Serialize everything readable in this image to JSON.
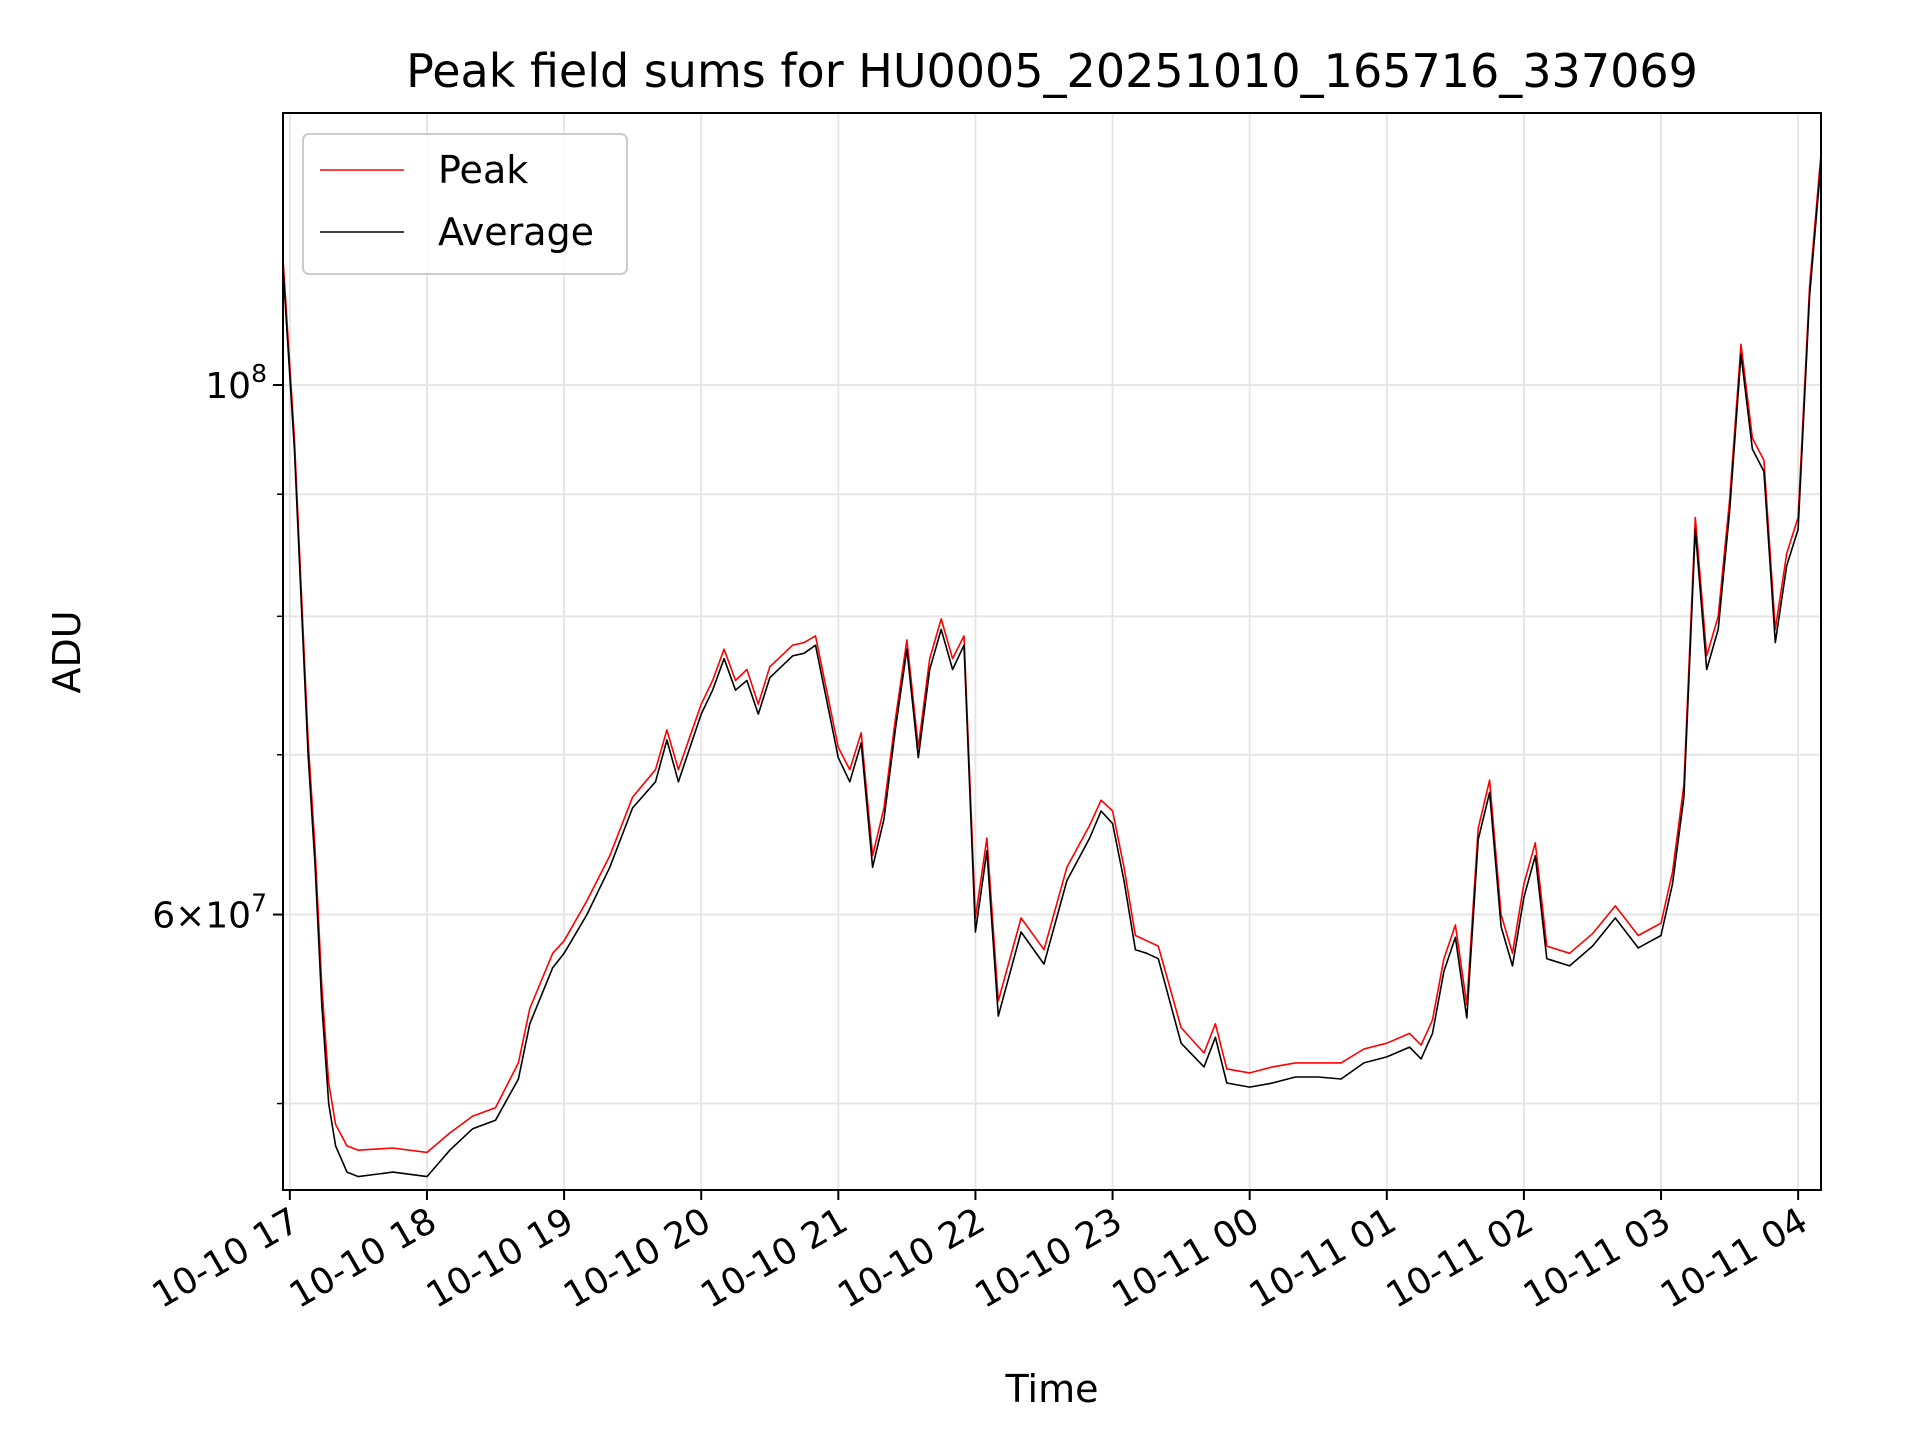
{
  "chart_data": {
    "type": "line",
    "title": "Peak field sums for HU0005_20251010_165716_337069",
    "xlabel": "Time",
    "ylabel": "ADU",
    "yscale": "log",
    "grid": true,
    "legend_position": "top-left",
    "xlim": [
      "2025-10-10 16:57",
      "2025-10-11 04:10"
    ],
    "ylim": [
      46000000,
      130000000
    ],
    "x_ticks": [
      {
        "t": "2025-10-10 17:00",
        "label": "10-10 17"
      },
      {
        "t": "2025-10-10 18:00",
        "label": "10-10 18"
      },
      {
        "t": "2025-10-10 19:00",
        "label": "10-10 19"
      },
      {
        "t": "2025-10-10 20:00",
        "label": "10-10 20"
      },
      {
        "t": "2025-10-10 21:00",
        "label": "10-10 21"
      },
      {
        "t": "2025-10-10 22:00",
        "label": "10-10 22"
      },
      {
        "t": "2025-10-10 23:00",
        "label": "10-10 23"
      },
      {
        "t": "2025-10-11 00:00",
        "label": "10-11 00"
      },
      {
        "t": "2025-10-11 01:00",
        "label": "10-11 01"
      },
      {
        "t": "2025-10-11 02:00",
        "label": "10-11 02"
      },
      {
        "t": "2025-10-11 03:00",
        "label": "10-11 03"
      },
      {
        "t": "2025-10-11 04:00",
        "label": "10-11 04"
      }
    ],
    "y_major_ticks": [
      {
        "value": 60000000,
        "base": "6×10",
        "exp": "7"
      },
      {
        "value": 100000000,
        "base": "10",
        "exp": "8"
      }
    ],
    "y_minor_ticks": [
      50000000,
      70000000,
      80000000,
      90000000
    ],
    "colors": {
      "peak": "#ff0000",
      "average": "#000000"
    },
    "series": [
      {
        "name": "Peak",
        "color": "#ff0000",
        "x": [
          "2025-10-10 16:57",
          "2025-10-10 17:02",
          "2025-10-10 17:05",
          "2025-10-10 17:08",
          "2025-10-10 17:11",
          "2025-10-10 17:14",
          "2025-10-10 17:17",
          "2025-10-10 17:20",
          "2025-10-10 17:25",
          "2025-10-10 17:30",
          "2025-10-10 17:45",
          "2025-10-10 18:00",
          "2025-10-10 18:10",
          "2025-10-10 18:20",
          "2025-10-10 18:30",
          "2025-10-10 18:40",
          "2025-10-10 18:45",
          "2025-10-10 18:55",
          "2025-10-10 19:00",
          "2025-10-10 19:10",
          "2025-10-10 19:20",
          "2025-10-10 19:30",
          "2025-10-10 19:40",
          "2025-10-10 19:45",
          "2025-10-10 19:50",
          "2025-10-10 20:00",
          "2025-10-10 20:05",
          "2025-10-10 20:10",
          "2025-10-10 20:15",
          "2025-10-10 20:20",
          "2025-10-10 20:25",
          "2025-10-10 20:30",
          "2025-10-10 20:40",
          "2025-10-10 20:45",
          "2025-10-10 20:50",
          "2025-10-10 21:00",
          "2025-10-10 21:05",
          "2025-10-10 21:10",
          "2025-10-10 21:15",
          "2025-10-10 21:20",
          "2025-10-10 21:25",
          "2025-10-10 21:30",
          "2025-10-10 21:35",
          "2025-10-10 21:40",
          "2025-10-10 21:45",
          "2025-10-10 21:50",
          "2025-10-10 21:55",
          "2025-10-10 22:00",
          "2025-10-10 22:05",
          "2025-10-10 22:10",
          "2025-10-10 22:20",
          "2025-10-10 22:30",
          "2025-10-10 22:40",
          "2025-10-10 22:50",
          "2025-10-10 22:55",
          "2025-10-10 23:00",
          "2025-10-10 23:05",
          "2025-10-10 23:10",
          "2025-10-10 23:15",
          "2025-10-10 23:20",
          "2025-10-10 23:30",
          "2025-10-10 23:40",
          "2025-10-10 23:45",
          "2025-10-10 23:50",
          "2025-10-11 00:00",
          "2025-10-11 00:10",
          "2025-10-11 00:20",
          "2025-10-11 00:30",
          "2025-10-11 00:40",
          "2025-10-11 00:50",
          "2025-10-11 01:00",
          "2025-10-11 01:10",
          "2025-10-11 01:15",
          "2025-10-11 01:20",
          "2025-10-11 01:25",
          "2025-10-11 01:30",
          "2025-10-11 01:35",
          "2025-10-11 01:40",
          "2025-10-11 01:45",
          "2025-10-11 01:50",
          "2025-10-11 01:55",
          "2025-10-11 02:00",
          "2025-10-11 02:05",
          "2025-10-11 02:10",
          "2025-10-11 02:20",
          "2025-10-11 02:30",
          "2025-10-11 02:40",
          "2025-10-11 02:50",
          "2025-10-11 03:00",
          "2025-10-11 03:05",
          "2025-10-11 03:10",
          "2025-10-11 03:15",
          "2025-10-11 03:20",
          "2025-10-11 03:25",
          "2025-10-11 03:30",
          "2025-10-11 03:35",
          "2025-10-11 03:40",
          "2025-10-11 03:45",
          "2025-10-11 03:50",
          "2025-10-11 03:55",
          "2025-10-11 04:00",
          "2025-10-11 04:05",
          "2025-10-11 04:10"
        ],
        "y": [
          113000000,
          95000000,
          82000000,
          71000000,
          64000000,
          56000000,
          51000000,
          49000000,
          48000000,
          47800000,
          47900000,
          47700000,
          48600000,
          49400000,
          49800000,
          52000000,
          54800000,
          57800000,
          58500000,
          60800000,
          63500000,
          67200000,
          69000000,
          71700000,
          69000000,
          73500000,
          75200000,
          77500000,
          75200000,
          76000000,
          73500000,
          76200000,
          77800000,
          78000000,
          78500000,
          70500000,
          69000000,
          71500000,
          63500000,
          66500000,
          72500000,
          78200000,
          70500000,
          76800000,
          79800000,
          76800000,
          78500000,
          59800000,
          64600000,
          55200000,
          59800000,
          58000000,
          62800000,
          65400000,
          67000000,
          66300000,
          62800000,
          58800000,
          58500000,
          58200000,
          53800000,
          52500000,
          54000000,
          51700000,
          51500000,
          51800000,
          52000000,
          52000000,
          52000000,
          52700000,
          53000000,
          53500000,
          52900000,
          54200000,
          57500000,
          59400000,
          55000000,
          65200000,
          68300000,
          60000000,
          57800000,
          61800000,
          64300000,
          58200000,
          57800000,
          58900000,
          60500000,
          58800000,
          59500000,
          62500000,
          68000000,
          88000000,
          77000000,
          80000000,
          89500000,
          104000000,
          95000000,
          93000000,
          79000000,
          85000000,
          88000000,
          110000000,
          125000000
        ]
      },
      {
        "name": "Average",
        "color": "#000000",
        "x": [
          "2025-10-10 16:57",
          "2025-10-10 17:02",
          "2025-10-10 17:05",
          "2025-10-10 17:08",
          "2025-10-10 17:11",
          "2025-10-10 17:14",
          "2025-10-10 17:17",
          "2025-10-10 17:20",
          "2025-10-10 17:25",
          "2025-10-10 17:30",
          "2025-10-10 17:45",
          "2025-10-10 18:00",
          "2025-10-10 18:10",
          "2025-10-10 18:20",
          "2025-10-10 18:30",
          "2025-10-10 18:40",
          "2025-10-10 18:45",
          "2025-10-10 18:55",
          "2025-10-10 19:00",
          "2025-10-10 19:10",
          "2025-10-10 19:20",
          "2025-10-10 19:30",
          "2025-10-10 19:40",
          "2025-10-10 19:45",
          "2025-10-10 19:50",
          "2025-10-10 20:00",
          "2025-10-10 20:05",
          "2025-10-10 20:10",
          "2025-10-10 20:15",
          "2025-10-10 20:20",
          "2025-10-10 20:25",
          "2025-10-10 20:30",
          "2025-10-10 20:40",
          "2025-10-10 20:45",
          "2025-10-10 20:50",
          "2025-10-10 21:00",
          "2025-10-10 21:05",
          "2025-10-10 21:10",
          "2025-10-10 21:15",
          "2025-10-10 21:20",
          "2025-10-10 21:25",
          "2025-10-10 21:30",
          "2025-10-10 21:35",
          "2025-10-10 21:40",
          "2025-10-10 21:45",
          "2025-10-10 21:50",
          "2025-10-10 21:55",
          "2025-10-10 22:00",
          "2025-10-10 22:05",
          "2025-10-10 22:10",
          "2025-10-10 22:20",
          "2025-10-10 22:30",
          "2025-10-10 22:40",
          "2025-10-10 22:50",
          "2025-10-10 22:55",
          "2025-10-10 23:00",
          "2025-10-10 23:05",
          "2025-10-10 23:10",
          "2025-10-10 23:15",
          "2025-10-10 23:20",
          "2025-10-10 23:30",
          "2025-10-10 23:40",
          "2025-10-10 23:45",
          "2025-10-10 23:50",
          "2025-10-11 00:00",
          "2025-10-11 00:10",
          "2025-10-11 00:20",
          "2025-10-11 00:30",
          "2025-10-11 00:40",
          "2025-10-11 00:50",
          "2025-10-11 01:00",
          "2025-10-11 01:10",
          "2025-10-11 01:15",
          "2025-10-11 01:20",
          "2025-10-11 01:25",
          "2025-10-11 01:30",
          "2025-10-11 01:35",
          "2025-10-11 01:40",
          "2025-10-11 01:45",
          "2025-10-11 01:50",
          "2025-10-11 01:55",
          "2025-10-11 02:00",
          "2025-10-11 02:05",
          "2025-10-11 02:10",
          "2025-10-11 02:20",
          "2025-10-11 02:30",
          "2025-10-11 02:40",
          "2025-10-11 02:50",
          "2025-10-11 03:00",
          "2025-10-11 03:05",
          "2025-10-11 03:10",
          "2025-10-11 03:15",
          "2025-10-11 03:20",
          "2025-10-11 03:25",
          "2025-10-11 03:30",
          "2025-10-11 03:35",
          "2025-10-11 03:40",
          "2025-10-11 03:45",
          "2025-10-11 03:50",
          "2025-10-11 03:55",
          "2025-10-11 04:00",
          "2025-10-11 04:05",
          "2025-10-11 04:10"
        ],
        "y": [
          112000000,
          94000000,
          81000000,
          70000000,
          63000000,
          55000000,
          50000000,
          48000000,
          46800000,
          46600000,
          46800000,
          46600000,
          47800000,
          48800000,
          49200000,
          51200000,
          54000000,
          57000000,
          57800000,
          60000000,
          62800000,
          66500000,
          68200000,
          71000000,
          68200000,
          72800000,
          74500000,
          76800000,
          74500000,
          75200000,
          72800000,
          75400000,
          77000000,
          77200000,
          77800000,
          69800000,
          68200000,
          70800000,
          62800000,
          65800000,
          71800000,
          77500000,
          69800000,
          76000000,
          79000000,
          76000000,
          77800000,
          59000000,
          63800000,
          54400000,
          59000000,
          57200000,
          62000000,
          64600000,
          66300000,
          65500000,
          62000000,
          58000000,
          57800000,
          57500000,
          53000000,
          51800000,
          53300000,
          51000000,
          50800000,
          51000000,
          51300000,
          51300000,
          51200000,
          52000000,
          52300000,
          52800000,
          52200000,
          53500000,
          56800000,
          58700000,
          54300000,
          64500000,
          67500000,
          59300000,
          57100000,
          61000000,
          63500000,
          57500000,
          57100000,
          58200000,
          59800000,
          58100000,
          58800000,
          61800000,
          67200000,
          87000000,
          76000000,
          79000000,
          88500000,
          103000000,
          94000000,
          92000000,
          78000000,
          84000000,
          87000000,
          109000000,
          124000000
        ]
      }
    ]
  }
}
